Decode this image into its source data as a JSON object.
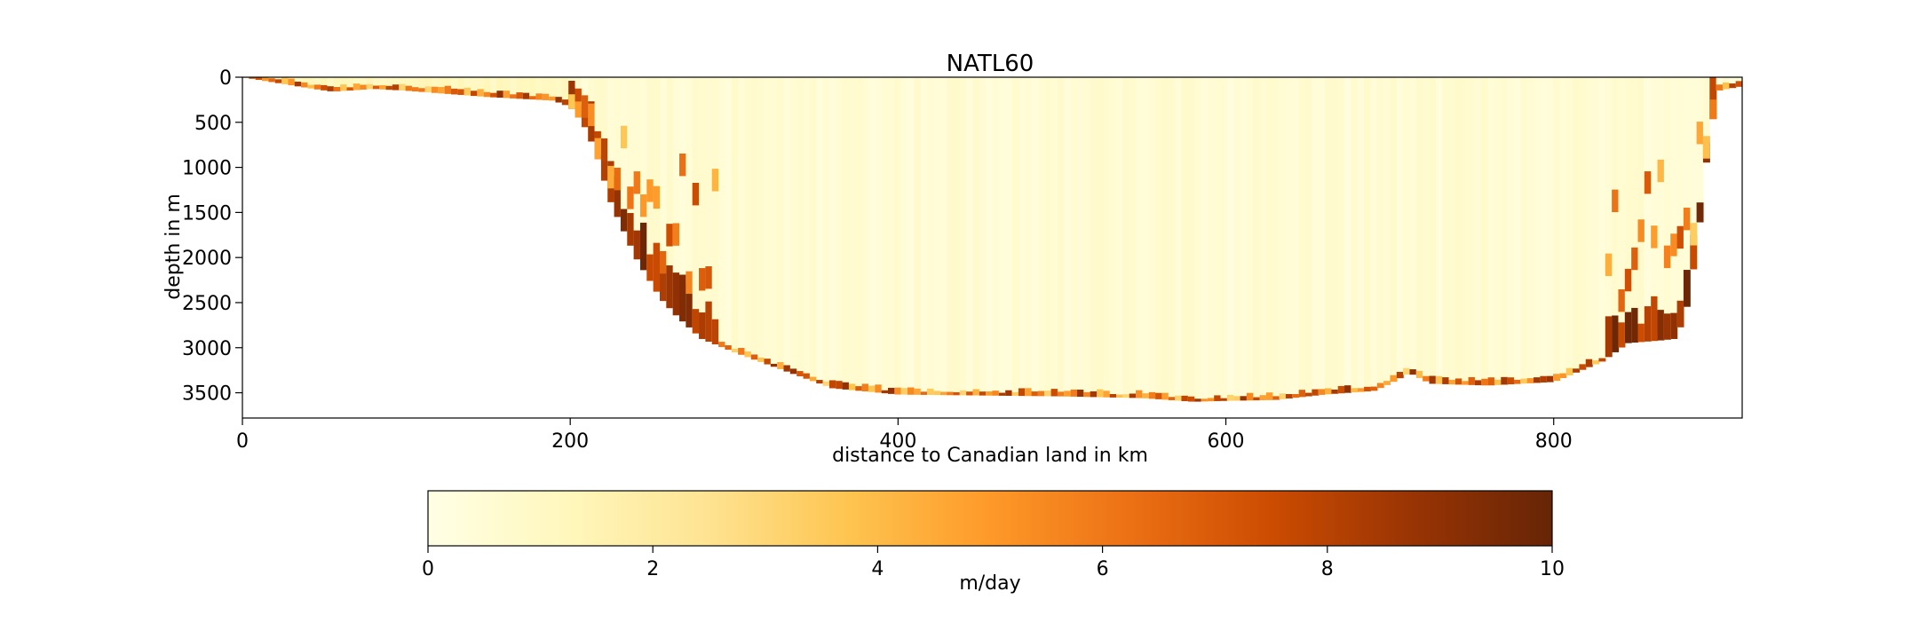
{
  "chart_data": {
    "type": "heatmap",
    "title": "NATL60",
    "xlabel": "distance to Canadian land in km",
    "ylabel": "depth in m",
    "xlim": [
      0,
      915
    ],
    "ylim": [
      3780,
      0
    ],
    "x_ticks": [
      0,
      200,
      400,
      600,
      800
    ],
    "y_ticks": [
      0,
      500,
      1000,
      1500,
      2000,
      2500,
      3000,
      3500
    ],
    "grid": false,
    "seafloor_profile": {
      "x": [
        0,
        10,
        40,
        55,
        80,
        100,
        150,
        190,
        200,
        208,
        215,
        225,
        240,
        255,
        265,
        280,
        300,
        330,
        360,
        400,
        450,
        500,
        550,
        580,
        600,
        630,
        660,
        690,
        700,
        712,
        725,
        760,
        800,
        830,
        845,
        865,
        875,
        882,
        888,
        894,
        900,
        915
      ],
      "depth": [
        0,
        30,
        120,
        160,
        130,
        150,
        220,
        260,
        330,
        520,
        800,
        1400,
        2000,
        2450,
        2650,
        2900,
        3050,
        3250,
        3450,
        3520,
        3530,
        3540,
        3560,
        3600,
        3590,
        3580,
        3520,
        3480,
        3400,
        3280,
        3400,
        3420,
        3380,
        3150,
        2950,
        2920,
        2900,
        2500,
        1800,
        800,
        150,
        100
      ]
    },
    "boundary_intensification": {
      "west_slope_km": [
        200,
        290
      ],
      "east_slope_km": [
        830,
        900
      ],
      "interior_value": 0.3,
      "slope_value": 10
    },
    "colorbar": {
      "label": "m/day",
      "range": [
        0,
        10
      ],
      "ticks": [
        0,
        2,
        4,
        6,
        8,
        10
      ],
      "colors": [
        "#ffffe5",
        "#fff7bc",
        "#fee391",
        "#fec44f",
        "#fe9929",
        "#ec7014",
        "#cc4c02",
        "#993404",
        "#662506"
      ]
    }
  }
}
